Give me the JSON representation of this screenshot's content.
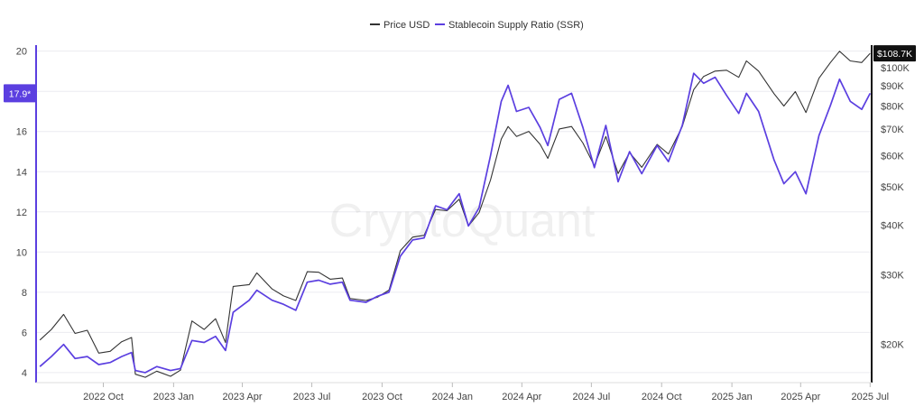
{
  "chart_data": {
    "type": "line",
    "watermark": "CryptoQuant",
    "legend": {
      "position": "top-center"
    },
    "series": [
      {
        "name": "Price USD",
        "axis": "right",
        "color": "#333333",
        "points": [
          [
            "2022-07-10",
            20500
          ],
          [
            "2022-07-25",
            21800
          ],
          [
            "2022-08-10",
            23800
          ],
          [
            "2022-08-25",
            21300
          ],
          [
            "2022-09-10",
            21700
          ],
          [
            "2022-09-25",
            19000
          ],
          [
            "2022-10-10",
            19200
          ],
          [
            "2022-10-25",
            20300
          ],
          [
            "2022-11-07",
            20800
          ],
          [
            "2022-11-12",
            16800
          ],
          [
            "2022-11-25",
            16500
          ],
          [
            "2022-12-10",
            17100
          ],
          [
            "2022-12-28",
            16600
          ],
          [
            "2023-01-10",
            17200
          ],
          [
            "2023-01-25",
            22900
          ],
          [
            "2023-02-10",
            21800
          ],
          [
            "2023-02-25",
            23200
          ],
          [
            "2023-03-10",
            20200
          ],
          [
            "2023-03-20",
            28000
          ],
          [
            "2023-04-10",
            28300
          ],
          [
            "2023-04-20",
            30300
          ],
          [
            "2023-05-10",
            27600
          ],
          [
            "2023-05-25",
            26500
          ],
          [
            "2023-06-10",
            25800
          ],
          [
            "2023-06-25",
            30500
          ],
          [
            "2023-07-10",
            30400
          ],
          [
            "2023-07-25",
            29200
          ],
          [
            "2023-08-10",
            29400
          ],
          [
            "2023-08-20",
            26100
          ],
          [
            "2023-09-10",
            25800
          ],
          [
            "2023-09-25",
            26300
          ],
          [
            "2023-10-10",
            27400
          ],
          [
            "2023-10-25",
            34500
          ],
          [
            "2023-11-10",
            37300
          ],
          [
            "2023-11-25",
            37700
          ],
          [
            "2023-12-10",
            43800
          ],
          [
            "2023-12-25",
            43500
          ],
          [
            "2024-01-10",
            46500
          ],
          [
            "2024-01-22",
            39800
          ],
          [
            "2024-02-05",
            43000
          ],
          [
            "2024-02-20",
            52000
          ],
          [
            "2024-03-05",
            66000
          ],
          [
            "2024-03-14",
            71000
          ],
          [
            "2024-03-25",
            67000
          ],
          [
            "2024-04-10",
            69000
          ],
          [
            "2024-04-25",
            64000
          ],
          [
            "2024-05-05",
            59000
          ],
          [
            "2024-05-20",
            70000
          ],
          [
            "2024-06-05",
            71000
          ],
          [
            "2024-06-20",
            64500
          ],
          [
            "2024-07-05",
            56500
          ],
          [
            "2024-07-20",
            67000
          ],
          [
            "2024-08-05",
            54000
          ],
          [
            "2024-08-20",
            61000
          ],
          [
            "2024-09-05",
            56000
          ],
          [
            "2024-09-25",
            64000
          ],
          [
            "2024-10-10",
            60500
          ],
          [
            "2024-10-28",
            71000
          ],
          [
            "2024-11-12",
            88000
          ],
          [
            "2024-11-25",
            95000
          ],
          [
            "2024-12-10",
            98000
          ],
          [
            "2024-12-25",
            98500
          ],
          [
            "2025-01-10",
            94500
          ],
          [
            "2025-01-20",
            104000
          ],
          [
            "2025-02-05",
            98000
          ],
          [
            "2025-02-25",
            86000
          ],
          [
            "2025-03-10",
            80000
          ],
          [
            "2025-03-25",
            87000
          ],
          [
            "2025-04-08",
            77000
          ],
          [
            "2025-04-25",
            94000
          ],
          [
            "2025-05-10",
            103000
          ],
          [
            "2025-05-22",
            110000
          ],
          [
            "2025-06-05",
            104000
          ],
          [
            "2025-06-20",
            103000
          ],
          [
            "2025-07-01",
            108700
          ]
        ]
      },
      {
        "name": "Stablecoin Supply Ratio (SSR)",
        "axis": "left",
        "color": "#5b3fe0",
        "points": [
          [
            "2022-07-10",
            4.3
          ],
          [
            "2022-07-25",
            4.8
          ],
          [
            "2022-08-10",
            5.4
          ],
          [
            "2022-08-25",
            4.7
          ],
          [
            "2022-09-10",
            4.8
          ],
          [
            "2022-09-25",
            4.4
          ],
          [
            "2022-10-10",
            4.5
          ],
          [
            "2022-10-25",
            4.8
          ],
          [
            "2022-11-07",
            5.0
          ],
          [
            "2022-11-12",
            4.1
          ],
          [
            "2022-11-25",
            4.0
          ],
          [
            "2022-12-10",
            4.3
          ],
          [
            "2022-12-28",
            4.1
          ],
          [
            "2023-01-10",
            4.2
          ],
          [
            "2023-01-25",
            5.6
          ],
          [
            "2023-02-10",
            5.5
          ],
          [
            "2023-02-25",
            5.8
          ],
          [
            "2023-03-10",
            5.1
          ],
          [
            "2023-03-20",
            7.0
          ],
          [
            "2023-04-10",
            7.6
          ],
          [
            "2023-04-20",
            8.1
          ],
          [
            "2023-05-10",
            7.6
          ],
          [
            "2023-05-25",
            7.4
          ],
          [
            "2023-06-10",
            7.1
          ],
          [
            "2023-06-25",
            8.5
          ],
          [
            "2023-07-10",
            8.6
          ],
          [
            "2023-07-25",
            8.4
          ],
          [
            "2023-08-10",
            8.5
          ],
          [
            "2023-08-20",
            7.6
          ],
          [
            "2023-09-10",
            7.5
          ],
          [
            "2023-09-25",
            7.8
          ],
          [
            "2023-10-10",
            8.0
          ],
          [
            "2023-10-25",
            9.8
          ],
          [
            "2023-11-10",
            10.6
          ],
          [
            "2023-11-25",
            10.7
          ],
          [
            "2023-12-10",
            12.3
          ],
          [
            "2023-12-25",
            12.1
          ],
          [
            "2024-01-10",
            12.9
          ],
          [
            "2024-01-22",
            11.3
          ],
          [
            "2024-02-05",
            12.2
          ],
          [
            "2024-02-20",
            14.8
          ],
          [
            "2024-03-05",
            17.5
          ],
          [
            "2024-03-14",
            18.3
          ],
          [
            "2024-03-25",
            17.0
          ],
          [
            "2024-04-10",
            17.2
          ],
          [
            "2024-04-25",
            16.2
          ],
          [
            "2024-05-05",
            15.3
          ],
          [
            "2024-05-20",
            17.6
          ],
          [
            "2024-06-05",
            17.9
          ],
          [
            "2024-06-20",
            16.2
          ],
          [
            "2024-07-05",
            14.2
          ],
          [
            "2024-07-20",
            16.3
          ],
          [
            "2024-08-05",
            13.5
          ],
          [
            "2024-08-20",
            15.0
          ],
          [
            "2024-09-05",
            13.9
          ],
          [
            "2024-09-25",
            15.3
          ],
          [
            "2024-10-10",
            14.5
          ],
          [
            "2024-10-28",
            16.3
          ],
          [
            "2024-11-12",
            18.9
          ],
          [
            "2024-11-25",
            18.4
          ],
          [
            "2024-12-10",
            18.7
          ],
          [
            "2024-12-25",
            17.8
          ],
          [
            "2025-01-10",
            16.9
          ],
          [
            "2025-01-20",
            17.9
          ],
          [
            "2025-02-05",
            17.0
          ],
          [
            "2025-02-25",
            14.6
          ],
          [
            "2025-03-10",
            13.4
          ],
          [
            "2025-03-25",
            14.0
          ],
          [
            "2025-04-08",
            12.9
          ],
          [
            "2025-04-25",
            15.8
          ],
          [
            "2025-05-10",
            17.3
          ],
          [
            "2025-05-22",
            18.6
          ],
          [
            "2025-06-05",
            17.5
          ],
          [
            "2025-06-20",
            17.1
          ],
          [
            "2025-07-01",
            17.9
          ]
        ]
      }
    ],
    "x_axis": {
      "type": "date",
      "range": [
        "2022-07-05",
        "2025-07-03"
      ],
      "ticks": [
        {
          "date": "2022-10-01",
          "label": "2022 Oct"
        },
        {
          "date": "2023-01-01",
          "label": "2023 Jan"
        },
        {
          "date": "2023-04-01",
          "label": "2023 Apr"
        },
        {
          "date": "2023-07-01",
          "label": "2023 Jul"
        },
        {
          "date": "2023-10-01",
          "label": "2023 Oct"
        },
        {
          "date": "2024-01-01",
          "label": "2024 Jan"
        },
        {
          "date": "2024-04-01",
          "label": "2024 Apr"
        },
        {
          "date": "2024-07-01",
          "label": "2024 Jul"
        },
        {
          "date": "2024-10-01",
          "label": "2024 Oct"
        },
        {
          "date": "2025-01-01",
          "label": "2025 Jan"
        },
        {
          "date": "2025-04-01",
          "label": "2025 Apr"
        },
        {
          "date": "2025-07-01",
          "label": "2025 Jul"
        }
      ]
    },
    "y_left": {
      "range": [
        3.5,
        20.3
      ],
      "grid": true,
      "ticks": [
        4,
        6,
        8,
        10,
        12,
        14,
        16,
        18,
        20
      ],
      "tick_labels": [
        "4",
        "6",
        "8",
        "10",
        "12",
        "14",
        "16",
        "18",
        "20"
      ],
      "hidden_ticks": [
        18
      ],
      "current_label": {
        "value": 17.9,
        "text": "17.9*"
      }
    },
    "y_right": {
      "scale": "log",
      "range": [
        16000,
        114000
      ],
      "ticks": [
        20000,
        30000,
        40000,
        50000,
        60000,
        70000,
        80000,
        90000,
        100000
      ],
      "tick_labels": [
        "$20K",
        "$30K",
        "$40K",
        "$50K",
        "$60K",
        "$70K",
        "$80K",
        "$90K",
        "$100K"
      ],
      "current_label": {
        "value": 108700,
        "text": "$108.7K"
      }
    }
  }
}
